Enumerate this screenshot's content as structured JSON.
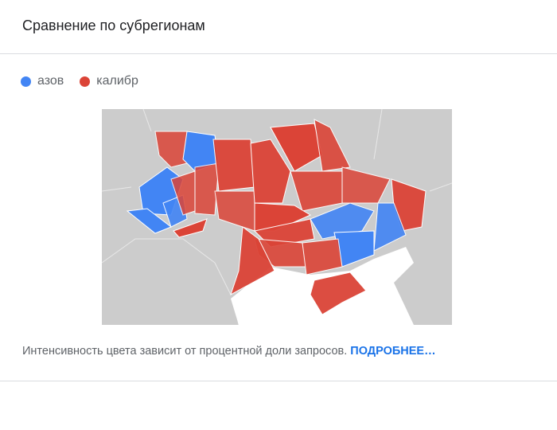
{
  "header": {
    "title": "Сравнение по субрегионам"
  },
  "legend": [
    {
      "name": "азов",
      "color": "#4285f4"
    },
    {
      "name": "калибр",
      "color": "#db4437"
    }
  ],
  "footer": {
    "note": "Интенсивность цвета зависит от процентной доли запросов.",
    "link": "ПОДРОБНЕЕ…"
  }
}
